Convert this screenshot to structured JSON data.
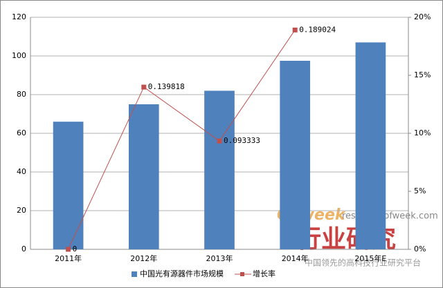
{
  "chart_data": {
    "type": "bar-line",
    "categories": [
      "2011年",
      "2012年",
      "2013年",
      "2014年",
      "2015年E"
    ],
    "series": [
      {
        "name": "中国光有源器件市场规模",
        "type": "bar",
        "color": "#4f81bd",
        "values": [
          66,
          75,
          82,
          97.5,
          107
        ]
      },
      {
        "name": "增长率",
        "type": "line",
        "axis": "y2",
        "color": "#c0504d",
        "values": [
          0,
          0.139818,
          0.093333,
          0.189024,
          null
        ]
      }
    ],
    "ylim": [
      0,
      120
    ],
    "yticks": [
      0,
      20,
      40,
      60,
      80,
      100,
      120
    ],
    "y2lim": [
      0,
      0.2
    ],
    "y2ticks": [
      {
        "value": 0,
        "label": "0%"
      },
      {
        "value": 0.05,
        "label": "5%"
      },
      {
        "value": 0.1,
        "label": "10%"
      },
      {
        "value": 0.15,
        "label": "15%"
      },
      {
        "value": 0.2,
        "label": "20%"
      }
    ],
    "grid": true,
    "legend": "bottom",
    "watermark": {
      "brand": "OFweek",
      "site": "research.ofweek.com",
      "title": "行业研究",
      "slogan": "中国领先的高科技行业研究平台"
    }
  }
}
